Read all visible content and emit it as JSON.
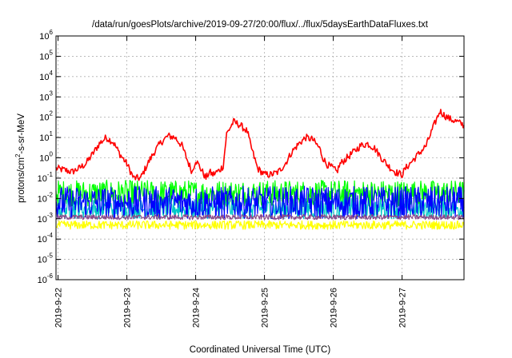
{
  "chart_data": {
    "type": "line",
    "title": "/data/run/goesPlots/archive/2019-09-27/20:00/flux/../flux/5daysEarthDataFluxes.txt",
    "xlabel": "Coordinated Universal Time (UTC)",
    "ylabel_parts": [
      "protons/cm",
      "2",
      "-s-sr-MeV"
    ],
    "x_tick_labels": [
      "2019-9-22",
      "2019-9-23",
      "2019-9-24",
      "2019-9-25",
      "2019-9-26",
      "2019-9-27"
    ],
    "y_scale": "log",
    "ylim": [
      1e-06,
      1000000.0
    ],
    "y_ticks": [
      {
        "exp": -6,
        "label": "10",
        "sup": "-6"
      },
      {
        "exp": -5,
        "label": "10",
        "sup": "-5"
      },
      {
        "exp": -4,
        "label": "10",
        "sup": "-4"
      },
      {
        "exp": -3,
        "label": "10",
        "sup": "-3"
      },
      {
        "exp": -2,
        "label": "10",
        "sup": "-2"
      },
      {
        "exp": -1,
        "label": "10",
        "sup": "-1"
      },
      {
        "exp": 0,
        "label": "10",
        "sup": "0"
      },
      {
        "exp": 1,
        "label": "10",
        "sup": "1"
      },
      {
        "exp": 2,
        "label": "10",
        "sup": "2"
      },
      {
        "exp": 3,
        "label": "10",
        "sup": "3"
      },
      {
        "exp": 4,
        "label": "10",
        "sup": "4"
      },
      {
        "exp": 5,
        "label": "10",
        "sup": "5"
      },
      {
        "exp": 6,
        "label": "10",
        "sup": "6"
      }
    ],
    "grid": true,
    "x_range_days": [
      21.97,
      27.9
    ],
    "series": [
      {
        "color": "#ff0000",
        "points": [
          [
            21.97,
            0.3
          ],
          [
            22.1,
            0.25
          ],
          [
            22.2,
            0.2
          ],
          [
            22.3,
            0.3
          ],
          [
            22.4,
            0.5
          ],
          [
            22.5,
            1.5
          ],
          [
            22.6,
            5
          ],
          [
            22.7,
            10
          ],
          [
            22.8,
            6
          ],
          [
            22.9,
            1.5
          ],
          [
            23.0,
            0.5
          ],
          [
            23.1,
            0.1
          ],
          [
            23.2,
            0.1
          ],
          [
            23.3,
            0.5
          ],
          [
            23.4,
            2
          ],
          [
            23.5,
            6
          ],
          [
            23.6,
            12
          ],
          [
            23.7,
            10
          ],
          [
            23.8,
            4
          ],
          [
            23.9,
            0.5
          ],
          [
            23.95,
            0.2
          ],
          [
            24.0,
            0.8
          ],
          [
            24.1,
            0.2
          ],
          [
            24.15,
            0.1
          ],
          [
            24.2,
            0.2
          ],
          [
            24.25,
            0.15
          ],
          [
            24.35,
            0.25
          ],
          [
            24.4,
            0.4
          ],
          [
            24.45,
            15
          ],
          [
            24.55,
            60
          ],
          [
            24.65,
            40
          ],
          [
            24.75,
            20
          ],
          [
            24.8,
            4
          ],
          [
            24.9,
            0.3
          ],
          [
            25.0,
            0.15
          ],
          [
            25.1,
            0.15
          ],
          [
            25.2,
            0.2
          ],
          [
            25.3,
            0.5
          ],
          [
            25.4,
            2
          ],
          [
            25.5,
            5
          ],
          [
            25.6,
            10
          ],
          [
            25.7,
            8
          ],
          [
            25.8,
            3
          ],
          [
            25.85,
            1
          ],
          [
            25.9,
            0.5
          ],
          [
            26.0,
            0.3
          ],
          [
            26.05,
            0.2
          ],
          [
            26.1,
            0.5
          ],
          [
            26.2,
            1
          ],
          [
            26.3,
            2
          ],
          [
            26.4,
            4
          ],
          [
            26.5,
            5
          ],
          [
            26.6,
            3
          ],
          [
            26.7,
            1
          ],
          [
            26.8,
            0.4
          ],
          [
            26.9,
            0.2
          ],
          [
            27.0,
            0.15
          ],
          [
            27.05,
            0.3
          ],
          [
            27.35,
            4
          ],
          [
            27.45,
            30
          ],
          [
            27.55,
            200
          ],
          [
            27.62,
            120
          ],
          [
            27.7,
            80
          ],
          [
            27.8,
            60
          ],
          [
            27.9,
            40
          ]
        ]
      },
      {
        "color": "#00ff00",
        "band": [
          0.004,
          0.08
        ],
        "jitter": 16
      },
      {
        "color": "#00c8c8",
        "band": [
          0.001,
          0.01
        ],
        "jitter": 14
      },
      {
        "color": "#0000ff",
        "band": [
          0.001,
          0.04
        ],
        "jitter": 18
      },
      {
        "color": "#ffff00",
        "band": [
          0.0003,
          0.0008
        ],
        "jitter": 12
      },
      {
        "color": "#8b4a8b",
        "band": [
          0.0009,
          0.0016
        ],
        "jitter": 10
      }
    ]
  }
}
